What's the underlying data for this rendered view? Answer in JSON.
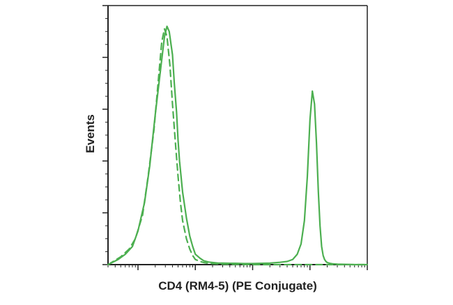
{
  "chart_data": {
    "type": "line",
    "title": "",
    "xlabel": "CD4 (RM4-5) (PE Conjugate)",
    "ylabel": "Events",
    "x_scale": "log",
    "xlim": [
      0.3,
      10000
    ],
    "ylim": [
      0,
      100
    ],
    "grid": false,
    "legend": "none",
    "series": [
      {
        "style": "solid",
        "color": "#4caf50",
        "x": [
          0.3,
          0.45,
          0.6,
          0.8,
          1,
          1.3,
          1.6,
          2,
          2.5,
          2.9,
          3.2,
          3.5,
          4,
          4.3,
          4.7,
          5,
          5.3,
          6,
          7,
          8,
          9,
          10,
          12,
          14,
          17,
          20,
          25,
          30,
          40,
          50,
          70,
          100,
          150,
          200,
          300,
          400,
          500,
          600,
          700,
          800,
          900,
          1000,
          1100,
          1200,
          1300,
          1400,
          1500,
          1600,
          1700,
          1800,
          1900,
          2000,
          2200,
          2500,
          3000,
          4000,
          6000,
          10000
        ],
        "y": [
          0,
          2,
          4,
          7,
          13,
          24,
          38,
          58,
          76,
          88,
          92,
          90,
          81,
          70,
          59,
          48,
          40,
          28,
          18,
          11,
          7,
          4,
          2.5,
          1.5,
          1,
          0.8,
          0.6,
          0.6,
          0.5,
          0.5,
          0.4,
          0.4,
          0.5,
          0.6,
          0.9,
          1.2,
          2,
          4,
          8,
          17,
          34,
          56,
          67,
          62,
          47,
          28,
          15,
          7,
          3.5,
          2,
          1.2,
          0.8,
          0.5,
          0.3,
          0.2,
          0.1,
          0,
          0
        ]
      },
      {
        "style": "dashed",
        "color": "#4caf50",
        "x": [
          0.3,
          0.5,
          0.7,
          0.9,
          1.2,
          1.5,
          1.9,
          2.3,
          2.6,
          2.9,
          3.2,
          3.6,
          4,
          4.5,
          5,
          5.5,
          6,
          7,
          8,
          9,
          10,
          12,
          14,
          16,
          20,
          30,
          50,
          100,
          300,
          1000,
          10000
        ],
        "y": [
          0,
          3,
          6,
          10,
          19,
          34,
          52,
          73,
          86,
          91,
          88,
          77,
          62,
          47,
          34,
          24,
          17,
          10,
          6,
          3.5,
          2,
          1.2,
          0.8,
          0.6,
          0.4,
          0.2,
          0.1,
          0,
          0,
          0,
          0
        ]
      }
    ]
  }
}
